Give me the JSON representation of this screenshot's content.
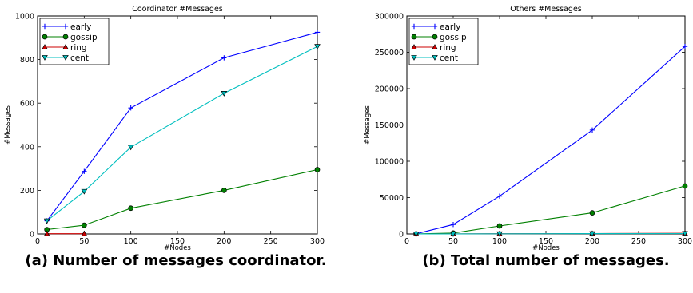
{
  "chart_data": [
    {
      "type": "line",
      "title": "Coordinator #Messages",
      "xlabel": "#Nodes",
      "ylabel": "#Messages",
      "xlim": [
        0,
        300
      ],
      "ylim": [
        0,
        1000
      ],
      "xticks": [
        0,
        50,
        100,
        150,
        200,
        250,
        300
      ],
      "yticks": [
        0,
        200,
        400,
        600,
        800,
        1000
      ],
      "legend_position": "top-left",
      "caption": "(a) Number of messages coordinator.",
      "series": [
        {
          "name": "early",
          "color": "#0000ff",
          "marker": "plus",
          "x": [
            10,
            50,
            100,
            200,
            300
          ],
          "y": [
            60,
            287,
            578,
            808,
            925
          ]
        },
        {
          "name": "gossip",
          "color": "#008000",
          "marker": "circle",
          "x": [
            10,
            50,
            100,
            200,
            300
          ],
          "y": [
            20,
            40,
            118,
            200,
            295
          ]
        },
        {
          "name": "ring",
          "color": "#cc0000",
          "marker": "triangle-up",
          "x": [
            10,
            50
          ],
          "y": [
            1,
            1
          ]
        },
        {
          "name": "cent",
          "color": "#00bfbf",
          "marker": "triangle-down",
          "x": [
            10,
            50,
            100,
            200,
            300
          ],
          "y": [
            60,
            195,
            398,
            645,
            860
          ]
        }
      ]
    },
    {
      "type": "line",
      "title": "Others #Messages",
      "xlabel": "#Nodes",
      "ylabel": "#Messages",
      "xlim": [
        0,
        300
      ],
      "ylim": [
        0,
        300000
      ],
      "xticks": [
        0,
        50,
        100,
        150,
        200,
        250,
        300
      ],
      "yticks": [
        0,
        50000,
        100000,
        150000,
        200000,
        250000,
        300000
      ],
      "legend_position": "top-left",
      "caption": "(b) Total number of messages.",
      "series": [
        {
          "name": "early",
          "color": "#0000ff",
          "marker": "plus",
          "x": [
            10,
            50,
            100,
            200,
            300
          ],
          "y": [
            200,
            13000,
            52000,
            143000,
            258000
          ]
        },
        {
          "name": "gossip",
          "color": "#008000",
          "marker": "circle",
          "x": [
            10,
            50,
            100,
            200,
            300
          ],
          "y": [
            100,
            1200,
            11000,
            29000,
            66000
          ]
        },
        {
          "name": "ring",
          "color": "#cc0000",
          "marker": "triangle-up",
          "x": [
            10,
            50,
            100,
            200,
            300
          ],
          "y": [
            30,
            150,
            300,
            600,
            900
          ]
        },
        {
          "name": "cent",
          "color": "#00bfbf",
          "marker": "triangle-down",
          "x": [
            10,
            50,
            100,
            200,
            300
          ],
          "y": [
            20,
            100,
            200,
            400,
            600
          ]
        }
      ]
    }
  ]
}
